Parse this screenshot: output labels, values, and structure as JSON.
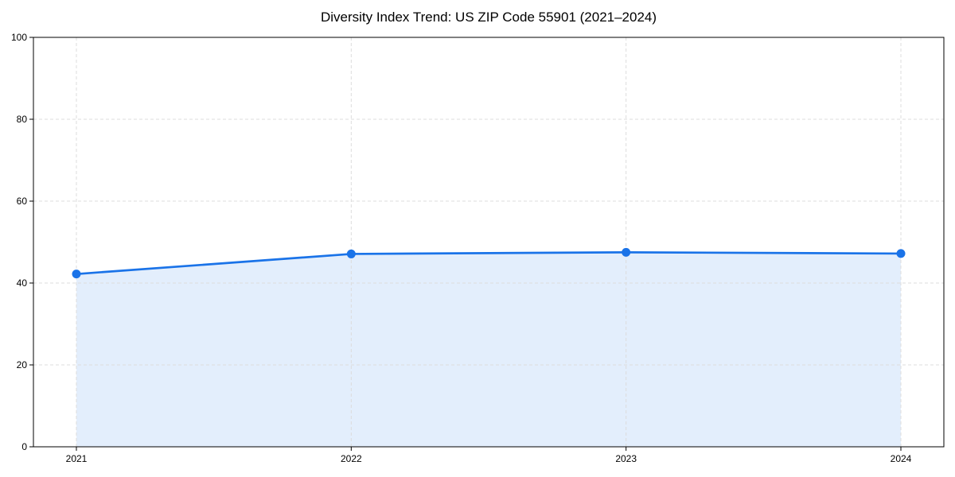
{
  "chart_data": {
    "type": "area",
    "title": "Diversity Index Trend: US ZIP Code 55901 (2021–2024)",
    "x": [
      2021,
      2022,
      2023,
      2024
    ],
    "x_labels": [
      "2021",
      "2022",
      "2023",
      "2024"
    ],
    "series": [
      {
        "name": "Diversity Index",
        "values": [
          42.2,
          47.1,
          47.5,
          47.2
        ]
      }
    ],
    "xlabel": "",
    "ylabel": "",
    "ylim": [
      0,
      100
    ],
    "yticks": [
      0,
      20,
      40,
      60,
      80,
      100
    ],
    "grid": true,
    "grid_style": "dashed",
    "legend": "none",
    "colors": {
      "line": "#1a73e8",
      "marker": "#1a73e8",
      "fill": "rgba(26, 115, 232, 0.12)",
      "grid": "#dcdcdc",
      "axis": "#000000",
      "text": "#000000",
      "background": "#ffffff"
    }
  }
}
